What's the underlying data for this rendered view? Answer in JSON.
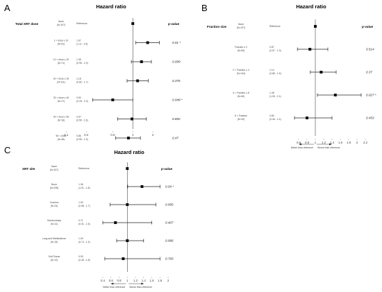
{
  "panels": [
    {
      "letter": "A",
      "title": "Hazard ratio",
      "variable": "Total XRT dose",
      "ref_header": "Reference",
      "p_header": "p-value",
      "ticks": [
        0.1,
        0.2,
        0.5,
        1,
        2
      ],
      "xlim": [
        0.08,
        3
      ],
      "rows": [
        {
          "line1": "None",
          "line2": "(N=107)",
          "is_ref": true,
          "hr": 1
        },
        {
          "line1": "1 < dose ≤ 10",
          "line2": "(N=51)",
          "est": "1.67",
          "ci": "(1.11 - 2.5)",
          "hr": 1.67,
          "lo": 1.11,
          "hi": 2.5,
          "p": "0.01 *"
        },
        {
          "line1": "10 < dose ≤ 20",
          "line2": "(N=71)",
          "est": "1.35",
          "ci": "(0.95 - 1.9)",
          "hr": 1.35,
          "lo": 0.95,
          "hi": 1.9,
          "p": "0.099"
        },
        {
          "line1": "20 < dose ≤ 30",
          "line2": "(N=111)",
          "est": "1.18",
          "ci": "(0.82 - 1.7)",
          "hr": 1.18,
          "lo": 0.82,
          "hi": 1.7,
          "p": "0.376"
        },
        {
          "line1": "30 < dose ≤ 40",
          "line2": "(N=17)",
          "est": "0.50",
          "ci": "(0.25 - 1.0)",
          "hr": 0.5,
          "lo": 0.25,
          "hi": 1.0,
          "p": "0.048 *"
        },
        {
          "line1": "40 < dose ≤ 50",
          "line2": "(N=16)",
          "est": "0.97",
          "ci": "(0.59 - 1.6)",
          "hr": 0.97,
          "lo": 0.59,
          "hi": 1.6,
          "p": "0.892"
        },
        {
          "line1": "50 < dose",
          "line2": "(N=45)",
          "est": "0.86",
          "ci": "(0.55 - 1.3)",
          "hr": 0.86,
          "lo": 0.55,
          "hi": 1.3,
          "p": "0.47"
        }
      ]
    },
    {
      "letter": "B",
      "title": "Hazard ratio",
      "variable": "Fraction size",
      "ref_header": "Reference",
      "p_header": "p-value",
      "ticks": [
        0.6,
        0.8,
        1,
        1.2,
        1.4,
        1.6,
        1.8,
        2,
        2.2
      ],
      "tick_labels": [
        "0.6",
        "0.8",
        "1",
        "1.2",
        "1.4",
        "1.6",
        "1.8",
        "2",
        "2.2"
      ],
      "xlim": [
        0.5,
        2.3
      ],
      "dir_left": "Better than reference",
      "dir_right": "Worse than reference",
      "rows": [
        {
          "line1": "None",
          "line2": "(N=107)",
          "is_ref": true,
          "hr": 1
        },
        {
          "line1": "Fraction ≤ 2",
          "line2": "(N=84)",
          "est": "0.87",
          "ci": "(0.57 - 1.3)",
          "hr": 0.87,
          "lo": 0.57,
          "hi": 1.3,
          "p": "0.514"
        },
        {
          "line1": "2 < Fraction ≤ 4",
          "line2": "(N=144)",
          "est": "1.14",
          "ci": "(0.88 - 1.5)",
          "hr": 1.14,
          "lo": 0.88,
          "hi": 1.5,
          "p": "0.37"
        },
        {
          "line1": "4 < Fraction ≤ 8",
          "line2": "(N=60)",
          "est": "1.48",
          "ci": "(1.05 - 2.1)",
          "hr": 1.48,
          "lo": 1.05,
          "hi": 2.1,
          "p": "0.027 *"
        },
        {
          "line1": "8 < Fraction",
          "line2": "(N=20)",
          "est": "0.80",
          "ci": "(0.46 - 1.4)",
          "hr": 0.8,
          "lo": 0.46,
          "hi": 1.4,
          "p": "0.453"
        }
      ]
    },
    {
      "letter": "C",
      "title": "Hazard ratio",
      "variable": "XRT site",
      "ref_header": "Reference",
      "p_header": "p-value",
      "ticks": [
        0.4,
        0.6,
        0.8,
        1,
        1.2,
        1.4,
        1.6,
        1.8,
        2
      ],
      "tick_labels": [
        "0.4",
        "0.6",
        "0.8",
        "1",
        "1.2",
        "1.4",
        "1.6",
        "1.8",
        "2"
      ],
      "xlim": [
        0.4,
        2.05
      ],
      "dir_left": "Better than reference",
      "dir_right": "Worse than reference",
      "rows": [
        {
          "line1": "None",
          "line2": "(N=107)",
          "is_ref": true,
          "hr": 1
        },
        {
          "line1": "Bone",
          "line2": "(N=238)",
          "est": "1.36",
          "ci": "(1.01 - 1.8)",
          "hr": 1.36,
          "lo": 1.01,
          "hi": 1.8,
          "p": "0.04 *"
        },
        {
          "line1": "Cranium",
          "line2": "(N=23)",
          "est": "1.00",
          "ci": "(0.58 - 1.7)",
          "hr": 1.0,
          "lo": 0.58,
          "hi": 1.7,
          "p": "0.995"
        },
        {
          "line1": "Genitourinary",
          "line2": "(N=11)",
          "est": "0.71",
          "ci": "(0.31 - 1.6)",
          "hr": 0.71,
          "lo": 0.31,
          "hi": 1.6,
          "p": "0.407"
        },
        {
          "line1": "Lung and Mediastinum",
          "line2": "(N=19)",
          "est": "1.00",
          "ci": "(0.74 - 1.4)",
          "hr": 1.0,
          "lo": 0.74,
          "hi": 1.4,
          "p": "0.986"
        },
        {
          "line1": "Soft Tissue",
          "line2": "(N=12)",
          "est": "0.90",
          "ci": "(0.45 - 1.8)",
          "hr": 0.9,
          "lo": 0.45,
          "hi": 1.8,
          "p": "0.765"
        }
      ]
    }
  ],
  "chart_data": [
    {
      "type": "scatter",
      "title": "Hazard ratio",
      "scale": "log",
      "xlim": [
        0.08,
        3
      ],
      "categories": [
        "None",
        "1 < dose ≤ 10",
        "10 < dose ≤ 20",
        "20 < dose ≤ 30",
        "30 < dose ≤ 40",
        "40 < dose ≤ 50",
        "50 < dose"
      ],
      "hr": [
        1,
        1.67,
        1.35,
        1.18,
        0.5,
        0.97,
        0.86
      ],
      "ci_low": [
        null,
        1.11,
        0.95,
        0.82,
        0.25,
        0.59,
        0.55
      ],
      "ci_high": [
        null,
        2.5,
        1.9,
        1.7,
        1.0,
        1.6,
        1.3
      ]
    },
    {
      "type": "scatter",
      "title": "Hazard ratio",
      "scale": "linear",
      "xlim": [
        0.5,
        2.3
      ],
      "categories": [
        "None",
        "Fraction ≤ 2",
        "2 < Fraction ≤ 4",
        "4 < Fraction ≤ 8",
        "8 < Fraction"
      ],
      "hr": [
        1,
        0.87,
        1.14,
        1.48,
        0.8
      ],
      "ci_low": [
        null,
        0.57,
        0.88,
        1.05,
        0.46
      ],
      "ci_high": [
        null,
        1.3,
        1.5,
        2.1,
        1.4
      ]
    },
    {
      "type": "scatter",
      "title": "Hazard ratio",
      "scale": "linear",
      "xlim": [
        0.4,
        2.05
      ],
      "categories": [
        "None",
        "Bone",
        "Cranium",
        "Genitourinary",
        "Lung and Mediastinum",
        "Soft Tissue"
      ],
      "hr": [
        1,
        1.36,
        1.0,
        0.71,
        1.0,
        0.9
      ],
      "ci_low": [
        null,
        1.01,
        0.58,
        0.31,
        0.74,
        0.45
      ],
      "ci_high": [
        null,
        1.8,
        1.7,
        1.6,
        1.4,
        1.8
      ]
    }
  ]
}
